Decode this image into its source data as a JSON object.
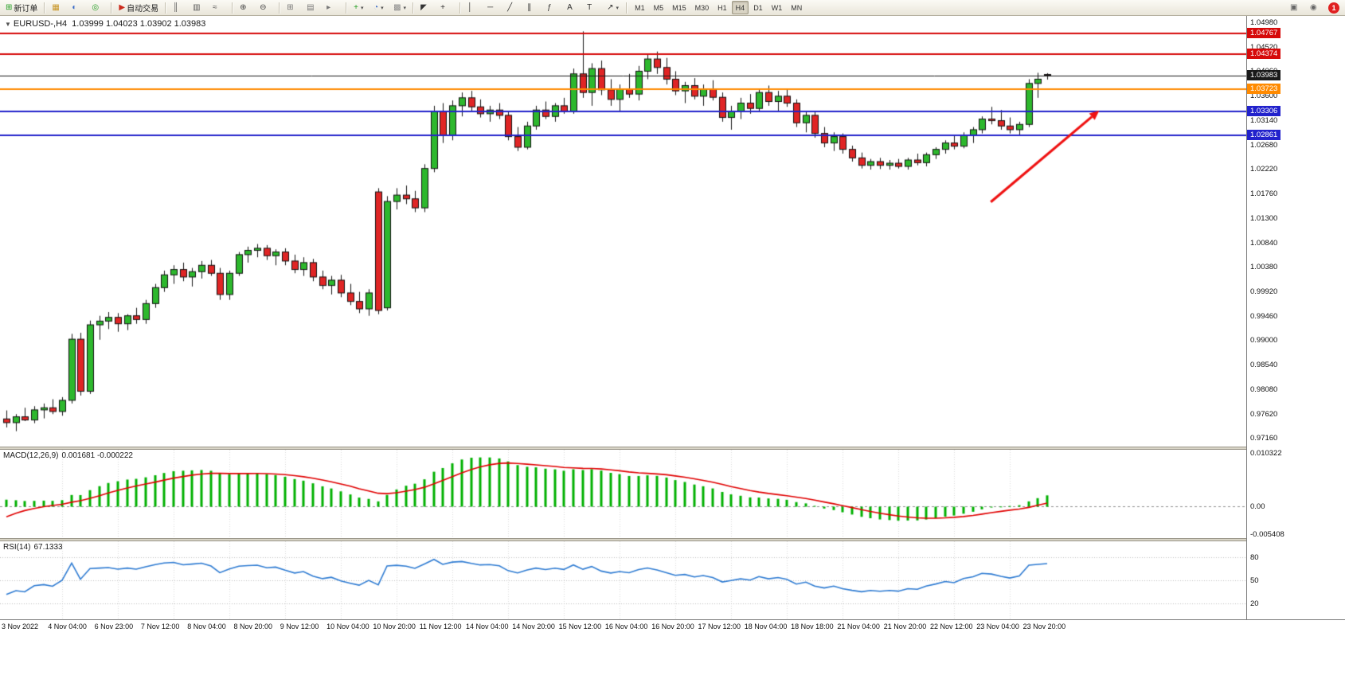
{
  "toolbar": {
    "dropdown_glyph": "▾",
    "groups": [
      {
        "items": [
          {
            "name": "new-order-button",
            "glyph": "⊞",
            "color": "#1f9d1f",
            "label": "新订单"
          }
        ]
      },
      {
        "items": [
          {
            "name": "market-watch-button",
            "glyph": "▦",
            "color": "#c79321"
          },
          {
            "name": "data-window-button",
            "glyph": "◐",
            "color": "#3a6bc8"
          },
          {
            "name": "navigator-button",
            "glyph": "◎",
            "color": "#2aa02a"
          }
        ]
      },
      {
        "items": [
          {
            "name": "autotrading-button",
            "glyph": "▶",
            "color": "#cc2b1d",
            "label": "自动交易"
          }
        ]
      },
      {
        "items": [
          {
            "name": "bar-chart-button",
            "glyph": "║",
            "color": "#555555"
          },
          {
            "name": "candlestick-chart-button",
            "glyph": "▥",
            "color": "#555555"
          },
          {
            "name": "line-chart-button",
            "glyph": "≈",
            "color": "#555555"
          }
        ]
      },
      {
        "items": [
          {
            "name": "zoom-in-button",
            "glyph": "⊕",
            "color": "#444444"
          },
          {
            "name": "zoom-out-button",
            "glyph": "⊖",
            "color": "#444444"
          }
        ]
      },
      {
        "items": [
          {
            "name": "tile-windows-button",
            "glyph": "⊞",
            "color": "#777777"
          },
          {
            "name": "auto-arrange-button",
            "glyph": "▤",
            "color": "#777777"
          },
          {
            "name": "chart-shift-button",
            "glyph": "▸",
            "color": "#777777"
          }
        ]
      },
      {
        "items": [
          {
            "name": "indicators-button",
            "glyph": "+",
            "color": "#1f9d1f",
            "dropdown": true
          },
          {
            "name": "periods-button",
            "glyph": "◔",
            "color": "#3a6bc8",
            "dropdown": true
          },
          {
            "name": "templates-button",
            "glyph": "▩",
            "color": "#8a8a8a",
            "dropdown": true
          }
        ]
      },
      {
        "items": [
          {
            "name": "cursor-button",
            "glyph": "◤",
            "color": "#333333"
          },
          {
            "name": "crosshair-button",
            "glyph": "+",
            "color": "#333333"
          }
        ]
      },
      {
        "items": [
          {
            "name": "vertical-line-button",
            "glyph": "│",
            "color": "#333333"
          },
          {
            "name": "horizontal-line-button",
            "glyph": "─",
            "color": "#333333"
          },
          {
            "name": "trendline-button",
            "glyph": "╱",
            "color": "#333333"
          },
          {
            "name": "channel-button",
            "glyph": "∥",
            "color": "#333333"
          },
          {
            "name": "fibonacci-button",
            "glyph": "ƒ",
            "color": "#333333"
          },
          {
            "name": "text-button",
            "glyph": "A",
            "color": "#333333"
          },
          {
            "name": "text-label-button",
            "glyph": "T",
            "color": "#333333"
          },
          {
            "name": "arrows-button",
            "glyph": "↗",
            "color": "#333333",
            "dropdown": true
          }
        ]
      }
    ],
    "timeframes": {
      "labels": [
        "M1",
        "M5",
        "M15",
        "M30",
        "H1",
        "H4",
        "D1",
        "W1",
        "MN"
      ],
      "active": "H4"
    },
    "right_icons": [
      {
        "name": "chart-profile-button",
        "glyph": "▣",
        "color": "#666666"
      },
      {
        "name": "alerts-button",
        "glyph": "◉",
        "color": "#666666"
      }
    ],
    "notification_badge": "1"
  },
  "chart_data": {
    "type": "candlestick",
    "symbol": "EURUSD-",
    "timeframe": "H4",
    "title": "EURUSD-,H4",
    "title_dropdown_glyph": "▼",
    "ohlc_text": "1.03999 1.04023 1.03902 1.03983",
    "ohlc_current": {
      "open": 1.03999,
      "high": 1.04023,
      "low": 1.03902,
      "close": 1.03983
    },
    "bull_color": "#2db82d",
    "bear_color": "#e02525",
    "wick_color": "#141414",
    "y_range": [
      0.97,
      1.051
    ],
    "y_axis_ticks": [
      "1.04980",
      "1.04520",
      "1.04060",
      "1.03600",
      "1.03140",
      "1.02680",
      "1.02220",
      "1.01760",
      "1.01300",
      "1.00840",
      "1.00380",
      "0.99920",
      "0.99460",
      "0.99000",
      "0.98540",
      "0.98080",
      "0.97620",
      "0.97160"
    ],
    "x_axis_labels": [
      "3 Nov 2022",
      "4 Nov 04:00",
      "6 Nov 23:00",
      "7 Nov 12:00",
      "8 Nov 04:00",
      "8 Nov 20:00",
      "9 Nov 12:00",
      "10 Nov 04:00",
      "10 Nov 20:00",
      "11 Nov 12:00",
      "14 Nov 04:00",
      "14 Nov 20:00",
      "15 Nov 12:00",
      "16 Nov 04:00",
      "16 Nov 20:00",
      "17 Nov 12:00",
      "18 Nov 04:00",
      "18 Nov 18:00",
      "21 Nov 04:00",
      "21 Nov 20:00",
      "22 Nov 12:00",
      "23 Nov 04:00",
      "23 Nov 20:00"
    ],
    "candles": [
      [
        0.9752,
        0.9768,
        0.9736,
        0.9745
      ],
      [
        0.9745,
        0.9761,
        0.9729,
        0.9756
      ],
      [
        0.9756,
        0.9773,
        0.9748,
        0.975
      ],
      [
        0.975,
        0.9776,
        0.9744,
        0.9769
      ],
      [
        0.9769,
        0.9781,
        0.9753,
        0.9773
      ],
      [
        0.9773,
        0.9789,
        0.9761,
        0.9766
      ],
      [
        0.9766,
        0.9793,
        0.9758,
        0.9787
      ],
      [
        0.9787,
        0.9912,
        0.9781,
        0.9902
      ],
      [
        0.9902,
        0.9914,
        0.9796,
        0.9804
      ],
      [
        0.9804,
        0.9937,
        0.9799,
        0.9929
      ],
      [
        0.9929,
        0.9946,
        0.9901,
        0.9936
      ],
      [
        0.9936,
        0.9953,
        0.9921,
        0.9943
      ],
      [
        0.9943,
        0.9951,
        0.9916,
        0.9931
      ],
      [
        0.9931,
        0.9949,
        0.9919,
        0.9946
      ],
      [
        0.9946,
        0.9961,
        0.9931,
        0.9939
      ],
      [
        0.9939,
        0.9976,
        0.9931,
        0.9969
      ],
      [
        0.9969,
        1.0006,
        0.9961,
        0.9999
      ],
      [
        0.9999,
        1.0031,
        0.9991,
        1.0023
      ],
      [
        1.0023,
        1.0041,
        1.0006,
        1.0033
      ],
      [
        1.0033,
        1.0046,
        1.0011,
        1.0019
      ],
      [
        1.0019,
        1.0036,
        1.0001,
        1.0029
      ],
      [
        1.0029,
        1.0049,
        1.0016,
        1.0041
      ],
      [
        1.0041,
        1.0051,
        1.0021,
        1.0026
      ],
      [
        1.0026,
        1.0036,
        0.9976,
        0.9986
      ],
      [
        0.9986,
        1.0031,
        0.9976,
        1.0026
      ],
      [
        1.0026,
        1.0066,
        1.0021,
        1.0061
      ],
      [
        1.0061,
        1.0076,
        1.0046,
        1.0069
      ],
      [
        1.0069,
        1.0081,
        1.0056,
        1.0073
      ],
      [
        1.0073,
        1.0079,
        1.0051,
        1.0059
      ],
      [
        1.0059,
        1.0071,
        1.0041,
        1.0066
      ],
      [
        1.0066,
        1.0073,
        1.0041,
        1.0049
      ],
      [
        1.0049,
        1.0061,
        1.0026,
        1.0033
      ],
      [
        1.0033,
        1.0056,
        1.0021,
        1.0046
      ],
      [
        1.0046,
        1.0053,
        1.0011,
        1.0019
      ],
      [
        1.0019,
        1.0031,
        0.9996,
        1.0003
      ],
      [
        1.0003,
        1.0021,
        0.9986,
        1.0013
      ],
      [
        1.0013,
        1.0023,
        0.9981,
        0.9989
      ],
      [
        0.9989,
        1.0006,
        0.9966,
        0.9973
      ],
      [
        0.9973,
        0.9991,
        0.9951,
        0.9959
      ],
      [
        0.9959,
        0.9996,
        0.9946,
        0.9989
      ],
      [
        1.0179,
        1.0186,
        0.9949,
        0.9956
      ],
      [
        0.9961,
        1.0171,
        0.9956,
        1.0161
      ],
      [
        1.0161,
        1.0186,
        1.0146,
        1.0173
      ],
      [
        1.0173,
        1.0191,
        1.0156,
        1.0166
      ],
      [
        1.0166,
        1.0181,
        1.0141,
        1.0149
      ],
      [
        1.0149,
        1.0231,
        1.0141,
        1.0223
      ],
      [
        1.0223,
        1.0341,
        1.0216,
        1.0331
      ],
      [
        1.0331,
        1.0346,
        1.0271,
        1.0286
      ],
      [
        1.0286,
        1.0351,
        1.0276,
        1.0341
      ],
      [
        1.0341,
        1.0366,
        1.0321,
        1.0356
      ],
      [
        1.0356,
        1.0369,
        1.0331,
        1.0339
      ],
      [
        1.0339,
        1.0353,
        1.0319,
        1.0326
      ],
      [
        1.0326,
        1.0341,
        1.0311,
        1.0333
      ],
      [
        1.0333,
        1.0346,
        1.0316,
        1.0323
      ],
      [
        1.0323,
        1.0331,
        1.0276,
        1.0283
      ],
      [
        1.0283,
        1.0301,
        1.0256,
        1.0263
      ],
      [
        1.0263,
        1.0311,
        1.0259,
        1.0303
      ],
      [
        1.0303,
        1.0341,
        1.0296,
        1.0333
      ],
      [
        1.0333,
        1.0349,
        1.0316,
        1.0321
      ],
      [
        1.0321,
        1.0346,
        1.0311,
        1.0341
      ],
      [
        1.0341,
        1.0356,
        1.0326,
        1.0331
      ],
      [
        1.0331,
        1.0411,
        1.0326,
        1.0401
      ],
      [
        1.0401,
        1.0481,
        1.0356,
        1.0366
      ],
      [
        1.0366,
        1.0421,
        1.0341,
        1.0411
      ],
      [
        1.0411,
        1.0426,
        1.0361,
        1.0371
      ],
      [
        1.0371,
        1.0391,
        1.0341,
        1.0353
      ],
      [
        1.0353,
        1.0381,
        1.0331,
        1.0373
      ],
      [
        1.0373,
        1.0401,
        1.0356,
        1.0363
      ],
      [
        1.0363,
        1.0416,
        1.0351,
        1.0406
      ],
      [
        1.0406,
        1.0439,
        1.0391,
        1.0429
      ],
      [
        1.0429,
        1.0443,
        1.0401,
        1.0413
      ],
      [
        1.0413,
        1.0431,
        1.0381,
        1.0391
      ],
      [
        1.0391,
        1.0406,
        1.0361,
        1.0369
      ],
      [
        1.0369,
        1.0386,
        1.0346,
        1.0379
      ],
      [
        1.0379,
        1.0393,
        1.0353,
        1.0359
      ],
      [
        1.0359,
        1.0381,
        1.0341,
        1.0373
      ],
      [
        1.0373,
        1.0389,
        1.0351,
        1.0357
      ],
      [
        1.0357,
        1.0366,
        1.0311,
        1.0319
      ],
      [
        1.0319,
        1.0341,
        1.0296,
        1.0331
      ],
      [
        1.0331,
        1.0356,
        1.0316,
        1.0346
      ],
      [
        1.0346,
        1.0363,
        1.0326,
        1.0336
      ],
      [
        1.0336,
        1.0373,
        1.0329,
        1.0366
      ],
      [
        1.0366,
        1.0379,
        1.0341,
        1.0349
      ],
      [
        1.0349,
        1.0369,
        1.0331,
        1.0359
      ],
      [
        1.0359,
        1.0371,
        1.0339,
        1.0346
      ],
      [
        1.0346,
        1.0353,
        1.0301,
        1.0309
      ],
      [
        1.0309,
        1.0331,
        1.0291,
        1.0323
      ],
      [
        1.0323,
        1.0331,
        1.0281,
        1.0289
      ],
      [
        1.0289,
        1.0301,
        1.0263,
        1.0271
      ],
      [
        1.0271,
        1.0291,
        1.0256,
        1.0283
      ],
      [
        1.0283,
        1.0289,
        1.0251,
        1.0259
      ],
      [
        1.0259,
        1.0266,
        1.0236,
        1.0243
      ],
      [
        1.0243,
        1.0253,
        1.0223,
        1.0229
      ],
      [
        1.0229,
        1.0241,
        1.0221,
        1.0236
      ],
      [
        1.0236,
        1.0243,
        1.0222,
        1.0229
      ],
      [
        1.0229,
        1.0239,
        1.0221,
        1.0233
      ],
      [
        1.0233,
        1.0241,
        1.0223,
        1.0227
      ],
      [
        1.0227,
        1.0243,
        1.0221,
        1.0239
      ],
      [
        1.0239,
        1.0251,
        1.0229,
        1.0234
      ],
      [
        1.0234,
        1.0253,
        1.0227,
        1.0249
      ],
      [
        1.0249,
        1.0263,
        1.0241,
        1.0259
      ],
      [
        1.0259,
        1.0276,
        1.0251,
        1.0271
      ],
      [
        1.0271,
        1.0286,
        1.0259,
        1.0265
      ],
      [
        1.0265,
        1.0291,
        1.0261,
        1.0286
      ],
      [
        1.0286,
        1.0301,
        1.0271,
        1.0296
      ],
      [
        1.0296,
        1.0321,
        1.0289,
        1.0316
      ],
      [
        1.0316,
        1.0339,
        1.0306,
        1.0313
      ],
      [
        1.0313,
        1.0333,
        1.0296,
        1.0303
      ],
      [
        1.0303,
        1.0319,
        1.0289,
        1.0296
      ],
      [
        1.0296,
        1.0311,
        1.0286,
        1.0306
      ],
      [
        1.0306,
        1.0391,
        1.0301,
        1.0383
      ],
      [
        1.0383,
        1.0403,
        1.0356,
        1.0391
      ],
      [
        1.03999,
        1.04023,
        1.03902,
        1.03983
      ]
    ],
    "horizontal_levels": [
      {
        "price": 1.04767,
        "label": "1.04767",
        "color": "#d60a0a",
        "width": 2,
        "role": "resistance"
      },
      {
        "price": 1.04374,
        "label": "1.04374",
        "color": "#d60a0a",
        "width": 2,
        "role": "resistance"
      },
      {
        "price": 1.03983,
        "label": "1.03983",
        "color": "#1a1a1a",
        "width": 1,
        "role": "current-price"
      },
      {
        "price": 1.03723,
        "label": "1.03723",
        "color": "#ff8a00",
        "width": 2,
        "role": "level"
      },
      {
        "price": 1.03306,
        "label": "1.03306",
        "color": "#2222cc",
        "width": 2,
        "role": "support"
      },
      {
        "price": 1.02861,
        "label": "1.02861",
        "color": "#2222cc",
        "width": 2,
        "role": "support"
      }
    ],
    "trend_arrow": {
      "x1_frac": 0.795,
      "price1": 1.016,
      "x2_frac": 0.882,
      "price2": 1.0332,
      "color": "#ef1212"
    },
    "indicators": {
      "macd": {
        "label": "MACD(12,26,9)",
        "values": "0.001681 -0.000222",
        "axis_labels": [
          {
            "text": "0.010322",
            "value": 0.010322
          },
          {
            "text": "0.00",
            "value": 0
          },
          {
            "text": "-0.005408",
            "value": -0.005408
          }
        ],
        "histogram_color": "#00b000",
        "signal_color": "#e00000"
      },
      "rsi": {
        "label": "RSI(14)",
        "value": "67.1333",
        "levels": [
          80,
          50,
          20
        ],
        "line_color": "#2e7bd2"
      }
    }
  }
}
